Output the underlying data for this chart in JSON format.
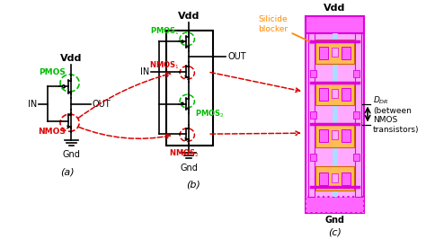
{
  "bg_color": "#ffffff",
  "fig_width": 4.74,
  "fig_height": 2.66,
  "dpi": 100,
  "colors": {
    "black": "#000000",
    "green": "#00bb00",
    "red": "#dd0000",
    "orange": "#ff8800",
    "magenta": "#dd00dd",
    "magenta_light": "#ff66ff",
    "magenta_fill": "#ffaaff",
    "orange_fill": "#ffbb55",
    "cyan_light": "#aaddff",
    "white": "#ffffff"
  },
  "labels": {
    "vdd_a": "Vdd",
    "vdd_b": "Vdd",
    "vdd_c": "Vdd",
    "gnd_a": "Gnd",
    "gnd_b": "Gnd",
    "gnd_c": "Gnd",
    "in_a": "IN",
    "in_b": "IN",
    "out_a": "OUT",
    "out_b": "OUT",
    "pmos_a": "PMOS",
    "nmos_a": "NMOS",
    "sub_a": "(a)",
    "sub_b": "(b)",
    "sub_c": "(c)",
    "silicide": "Silicide\nblocker",
    "ddr": "$D_{DR}$\n(between\nNMOS\ntransistors)"
  }
}
